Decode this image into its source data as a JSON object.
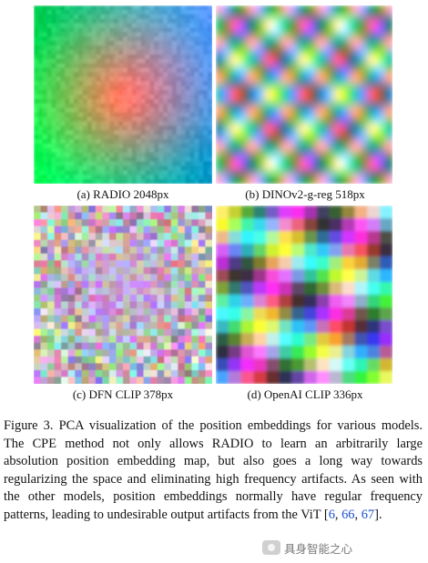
{
  "panels": [
    {
      "label": "(a) RADIO 2048px",
      "style": "smooth"
    },
    {
      "label": "(b) DINOv2-g-reg 518px",
      "style": "periodic"
    },
    {
      "label": "(c) DFN CLIP 378px",
      "style": "noisy"
    },
    {
      "label": "(d) OpenAI CLIP 336px",
      "style": "blocky"
    }
  ],
  "caption": {
    "prefix": "Figure 3. PCA visualization of the position embeddings for various models. The CPE method not only allows RADIO to learn an arbitrarily large absolution position embedding map, but also goes a long way towards regularizing the space and eliminating high frequency artifacts. As seen with the other models, position embeddings normally have regular frequency patterns, leading to undesirable output artifacts from the ViT [",
    "cite1": "6",
    "sep1": ", ",
    "cite2": "66",
    "sep2": ", ",
    "cite3": "67",
    "suffix": "]."
  },
  "watermark": {
    "text": "具身智能之心",
    "icon": "wechat-logo-icon"
  },
  "colors": {
    "citation": "#1a4fd6"
  }
}
